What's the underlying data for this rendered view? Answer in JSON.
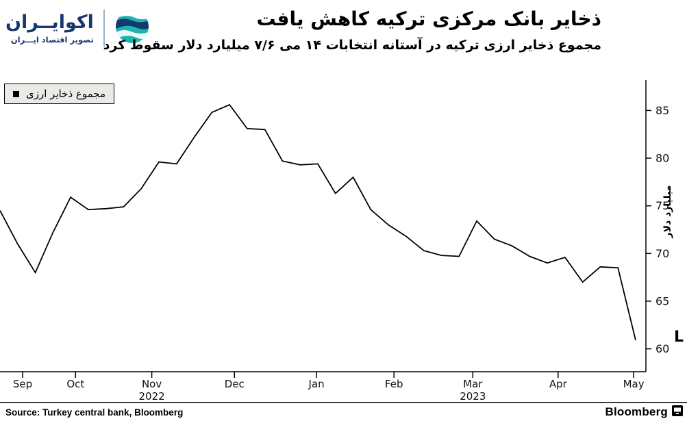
{
  "brand": {
    "logo_title": "اکوایــران",
    "logo_tagline": "تصویر اقتصاد ایـــران",
    "navy": "#16386e",
    "teal": "#1db4b1"
  },
  "header": {
    "title": "ذخایر بانک مرکزی ترکیه کاهش یافت",
    "subtitle": "مجموع ذخایر ارزی ترکیه در آستانه انتخابات ۱۴ می ۷/۶ میلیارد دلار سقوط کرد"
  },
  "legend": {
    "label": "مجموع ذخایر ارزی"
  },
  "chart_data": {
    "type": "line",
    "title": "ذخایر بانک مرکزی ترکیه کاهش یافت",
    "ylabel": "میلیارد دلار",
    "ylim": [
      57.6,
      87.9
    ],
    "yticks": [
      60,
      65,
      70,
      75,
      80,
      85
    ],
    "grid": false,
    "legend_position": "top-left",
    "x_range": [
      "Sep 2022",
      "May 2023"
    ],
    "x_unit": "weekly",
    "x_ticks": [
      {
        "label": "Sep",
        "pos": 0.035
      },
      {
        "label": "Oct",
        "pos": 0.117
      },
      {
        "label": "Nov",
        "pos": 0.235
      },
      {
        "label": "Dec",
        "pos": 0.363
      },
      {
        "label": "Jan",
        "pos": 0.49
      },
      {
        "label": "Feb",
        "pos": 0.61
      },
      {
        "label": "Mar",
        "pos": 0.732
      },
      {
        "label": "Apr",
        "pos": 0.864
      },
      {
        "label": "May",
        "pos": 0.981
      }
    ],
    "year_ticks": [
      {
        "label": "2022",
        "pos": 0.235
      },
      {
        "label": "2023",
        "pos": 0.732
      }
    ],
    "series": [
      {
        "name": "مجموع ذخایر ارزی",
        "color": "#000000",
        "values": [
          74.5,
          71.0,
          68.0,
          72.2,
          75.9,
          74.6,
          74.7,
          74.9,
          76.8,
          79.6,
          79.4,
          82.2,
          84.8,
          85.6,
          83.1,
          83.0,
          79.7,
          79.3,
          79.4,
          76.3,
          78.0,
          74.6,
          73.0,
          71.8,
          70.3,
          69.8,
          69.7,
          73.4,
          71.5,
          70.8,
          69.7,
          69.0,
          69.6,
          67.0,
          68.6,
          68.5,
          60.9
        ]
      }
    ]
  },
  "side_mark": "L",
  "footer": {
    "source": "Source:  Turkey central bank, Bloomberg",
    "brand": "Bloomberg"
  }
}
